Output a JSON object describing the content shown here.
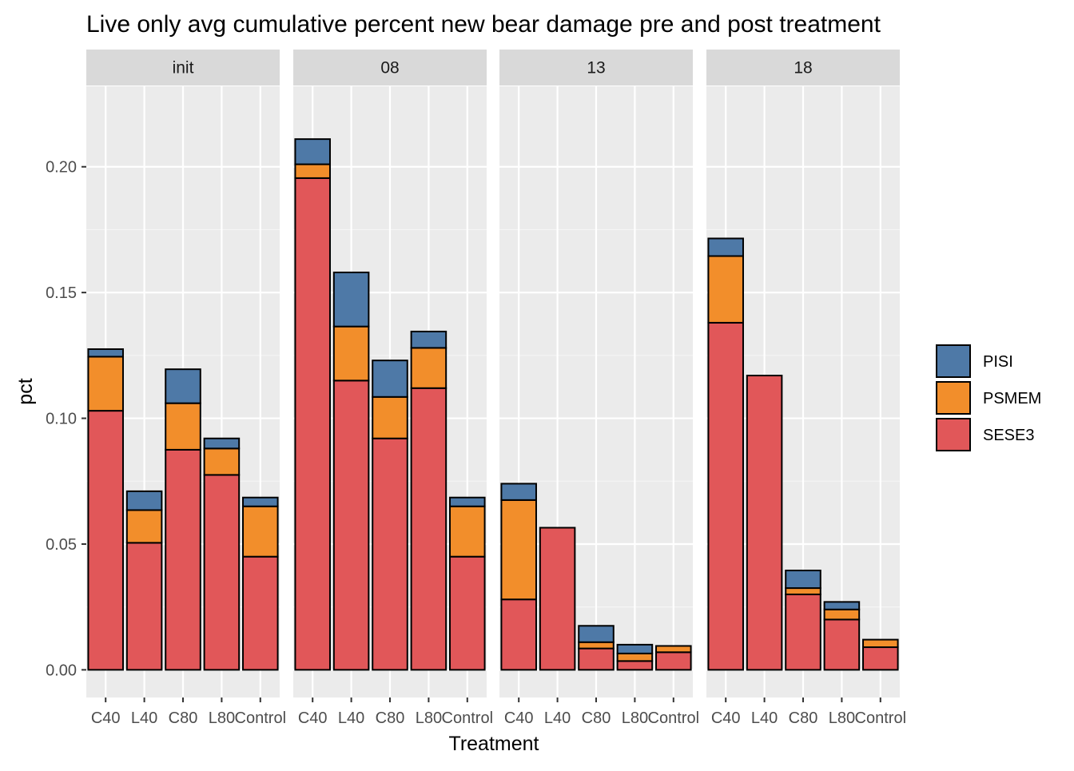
{
  "chart_data": {
    "type": "bar",
    "stacked": true,
    "title": "Live only avg cumulative percent new bear damage pre and post treatment",
    "xlabel": "Treatment",
    "ylabel": "pct",
    "ylim": [
      -0.011,
      0.232
    ],
    "yticks": [
      0.0,
      0.05,
      0.1,
      0.15,
      0.2
    ],
    "ytick_labels": [
      "0.00",
      "0.05",
      "0.10",
      "0.15",
      "0.20"
    ],
    "categories": [
      "C40",
      "L40",
      "C80",
      "L80",
      "Control"
    ],
    "stack_order_bottom_to_top": [
      "SESE3",
      "PSMEM",
      "PISI"
    ],
    "legend": {
      "position": "right",
      "entries": [
        {
          "name": "PISI",
          "color": "#4E79A7"
        },
        {
          "name": "PSMEM",
          "color": "#F28E2B"
        },
        {
          "name": "SESE3",
          "color": "#E15759"
        }
      ]
    },
    "grid": true,
    "panels": [
      {
        "label": "init",
        "series": [
          {
            "name": "SESE3",
            "values": [
              0.103,
              0.0505,
              0.0875,
              0.0775,
              0.045
            ]
          },
          {
            "name": "PSMEM",
            "values": [
              0.0215,
              0.013,
              0.0185,
              0.0105,
              0.02
            ]
          },
          {
            "name": "PISI",
            "values": [
              0.003,
              0.0075,
              0.0135,
              0.004,
              0.0035
            ]
          }
        ]
      },
      {
        "label": "08",
        "series": [
          {
            "name": "SESE3",
            "values": [
              0.1955,
              0.115,
              0.092,
              0.112,
              0.045
            ]
          },
          {
            "name": "PSMEM",
            "values": [
              0.0055,
              0.0215,
              0.0165,
              0.016,
              0.02
            ]
          },
          {
            "name": "PISI",
            "values": [
              0.01,
              0.0215,
              0.0145,
              0.0065,
              0.0035
            ]
          }
        ]
      },
      {
        "label": "13",
        "series": [
          {
            "name": "SESE3",
            "values": [
              0.028,
              0.0565,
              0.0085,
              0.0035,
              0.007
            ]
          },
          {
            "name": "PSMEM",
            "values": [
              0.0395,
              0.0,
              0.0025,
              0.003,
              0.0025
            ]
          },
          {
            "name": "PISI",
            "values": [
              0.0065,
              0.0,
              0.0065,
              0.0035,
              0.0
            ]
          }
        ]
      },
      {
        "label": "18",
        "series": [
          {
            "name": "SESE3",
            "values": [
              0.138,
              0.117,
              0.03,
              0.02,
              0.009
            ]
          },
          {
            "name": "PSMEM",
            "values": [
              0.0265,
              0.0,
              0.0025,
              0.004,
              0.003
            ]
          },
          {
            "name": "PISI",
            "values": [
              0.007,
              0.0,
              0.007,
              0.003,
              0.0
            ]
          }
        ]
      }
    ]
  },
  "colors": {
    "panel_background": "#EBEBEB",
    "strip_background": "#D9D9D9",
    "grid_major": "#FFFFFF",
    "grid_minor": "#F5F5F5",
    "bar_outline": "#000000"
  }
}
